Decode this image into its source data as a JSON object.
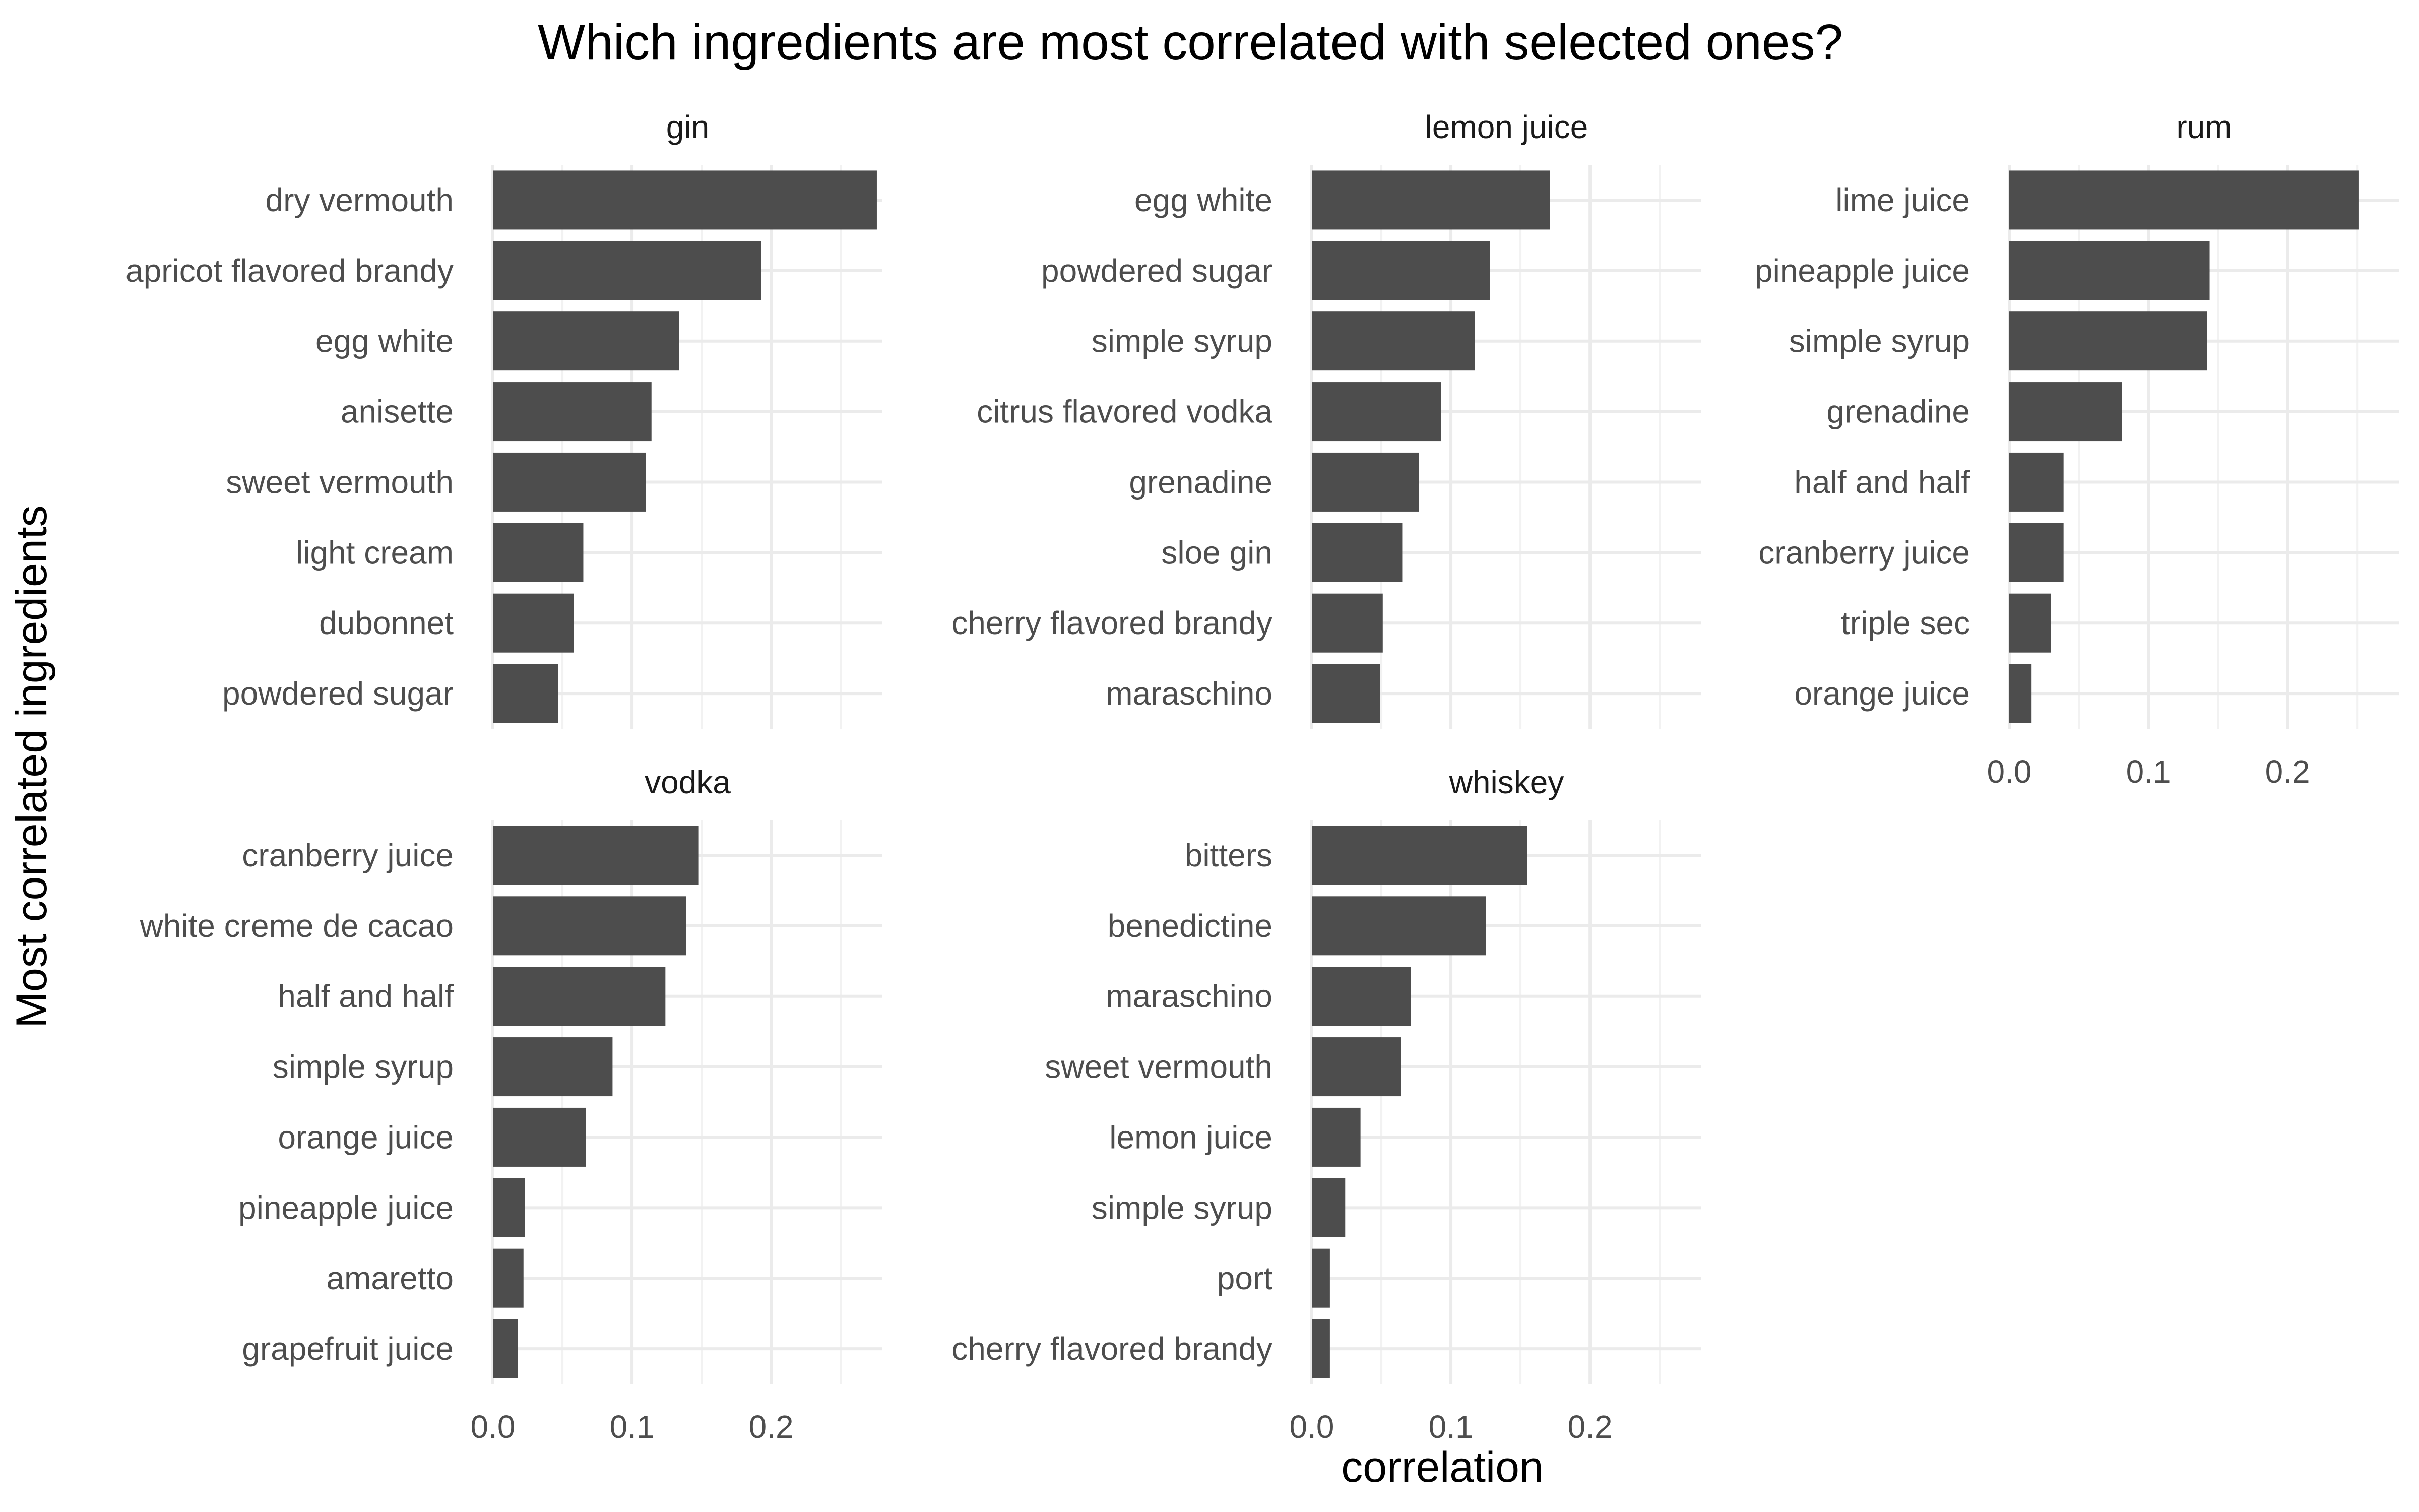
{
  "chart_data": {
    "type": "bar",
    "orientation": "horizontal",
    "layout": "faceted 3 columns x 2 rows, shared x axis",
    "title": "Which ingredients are most correlated with selected ones?",
    "xlabel": "correlation",
    "ylabel": "Most correlated ingredients",
    "xlim": [
      0,
      0.28
    ],
    "xticks": [
      0.0,
      0.1,
      0.2
    ],
    "xtick_labels": [
      "0.0",
      "0.1",
      "0.2"
    ],
    "grid": true,
    "bar_color": "#4D4D4D",
    "facets": [
      {
        "name": "gin",
        "categories": [
          "dry vermouth",
          "apricot flavored brandy",
          "egg white",
          "anisette",
          "sweet vermouth",
          "light cream",
          "dubonnet",
          "powdered sugar"
        ],
        "values": [
          0.276,
          0.193,
          0.134,
          0.114,
          0.11,
          0.065,
          0.058,
          0.047
        ]
      },
      {
        "name": "lemon juice",
        "categories": [
          "egg white",
          "powdered sugar",
          "simple syrup",
          "citrus flavored vodka",
          "grenadine",
          "sloe gin",
          "cherry flavored brandy",
          "maraschino"
        ],
        "values": [
          0.171,
          0.128,
          0.117,
          0.093,
          0.077,
          0.065,
          0.051,
          0.049
        ]
      },
      {
        "name": "rum",
        "categories": [
          "lime juice",
          "pineapple juice",
          "simple syrup",
          "grenadine",
          "half and half",
          "cranberry juice",
          "triple sec",
          "orange juice"
        ],
        "values": [
          0.251,
          0.144,
          0.142,
          0.081,
          0.039,
          0.039,
          0.03,
          0.016
        ]
      },
      {
        "name": "vodka",
        "categories": [
          "cranberry juice",
          "white creme de cacao",
          "half and half",
          "simple syrup",
          "orange juice",
          "pineapple juice",
          "amaretto",
          "grapefruit juice"
        ],
        "values": [
          0.148,
          0.139,
          0.124,
          0.086,
          0.067,
          0.023,
          0.022,
          0.018
        ]
      },
      {
        "name": "whiskey",
        "categories": [
          "bitters",
          "benedictine",
          "maraschino",
          "sweet vermouth",
          "lemon juice",
          "simple syrup",
          "port",
          "cherry flavored brandy"
        ],
        "values": [
          0.155,
          0.125,
          0.071,
          0.064,
          0.035,
          0.024,
          0.013,
          0.013
        ]
      }
    ]
  }
}
